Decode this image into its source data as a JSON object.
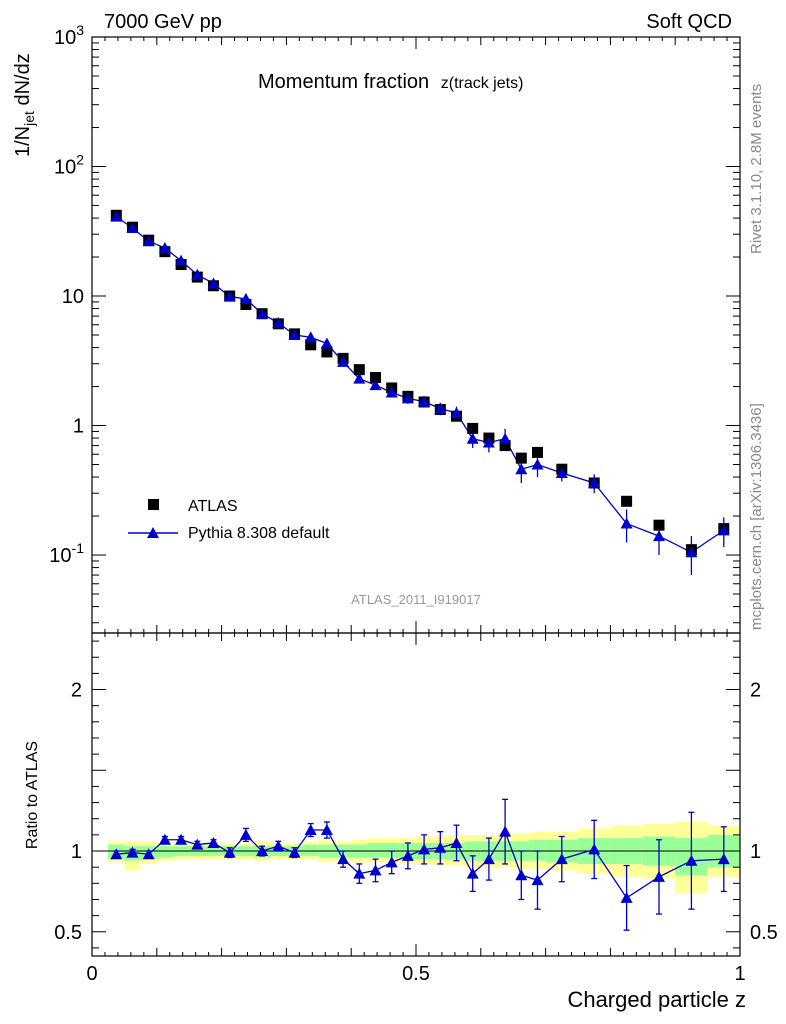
{
  "header": {
    "left": "7000 GeV pp",
    "right": "Soft QCD"
  },
  "side_labels": {
    "rivet": "Rivet 3.1.10,  2.8M events",
    "mcplots": "mcplots.cern.ch [arXiv:1306.3436]"
  },
  "chart_data": [
    {
      "type": "scatter",
      "title": "Momentum fraction",
      "title_sub": "z(track jets)",
      "analysis_tag": "ATLAS_2011_I919017",
      "ylabel": "1/N_jet dN/dz",
      "yscale": "log",
      "ylim": [
        0.025,
        1000
      ],
      "xlim": [
        0,
        1
      ],
      "y_tick_labels": [
        "10^-1",
        "1",
        "10",
        "10^2",
        "10^3"
      ],
      "legend": {
        "position": "lower-left",
        "entries": [
          "ATLAS",
          "Pythia 8.308 default"
        ]
      },
      "series": [
        {
          "name": "ATLAS",
          "marker": "square",
          "color": "#000000",
          "x": [
            0.0375,
            0.0625,
            0.0875,
            0.1125,
            0.1375,
            0.1625,
            0.1875,
            0.2125,
            0.2375,
            0.2625,
            0.2875,
            0.3125,
            0.3375,
            0.3625,
            0.3875,
            0.4125,
            0.4375,
            0.4625,
            0.4875,
            0.5125,
            0.5375,
            0.5625,
            0.5875,
            0.6125,
            0.6375,
            0.6625,
            0.6875,
            0.725,
            0.775,
            0.825,
            0.875,
            0.925,
            0.975
          ],
          "y": [
            42,
            34,
            27,
            22,
            17.5,
            14,
            12,
            10,
            8.6,
            7.3,
            6.1,
            5.1,
            4.2,
            3.7,
            3.3,
            2.7,
            2.35,
            1.95,
            1.68,
            1.52,
            1.33,
            1.18,
            0.95,
            0.8,
            0.7,
            0.56,
            0.62,
            0.46,
            0.36,
            0.26,
            0.17,
            0.11,
            0.16
          ]
        },
        {
          "name": "Pythia 8.308 default",
          "marker": "triangle",
          "color": "#0000cc",
          "x": [
            0.0375,
            0.0625,
            0.0875,
            0.1125,
            0.1375,
            0.1625,
            0.1875,
            0.2125,
            0.2375,
            0.2625,
            0.2875,
            0.3125,
            0.3375,
            0.3625,
            0.3875,
            0.4125,
            0.4375,
            0.4625,
            0.4875,
            0.5125,
            0.5375,
            0.5625,
            0.5875,
            0.6125,
            0.6375,
            0.6625,
            0.6875,
            0.725,
            0.775,
            0.825,
            0.875,
            0.925,
            0.975
          ],
          "y": [
            41,
            33.5,
            26.5,
            23.5,
            18.7,
            14.6,
            12.5,
            9.9,
            9.5,
            7.3,
            6.2,
            5.0,
            4.8,
            4.3,
            3.1,
            2.3,
            2.05,
            1.8,
            1.62,
            1.53,
            1.35,
            1.25,
            0.79,
            0.74,
            0.79,
            0.46,
            0.5,
            0.43,
            0.36,
            0.175,
            0.14,
            0.105,
            0.155
          ],
          "yerr": [
            1,
            0.8,
            0.6,
            0.6,
            0.5,
            0.4,
            0.3,
            0.3,
            0.3,
            0.2,
            0.2,
            0.2,
            0.2,
            0.2,
            0.15,
            0.15,
            0.15,
            0.15,
            0.15,
            0.15,
            0.15,
            0.15,
            0.12,
            0.12,
            0.15,
            0.1,
            0.1,
            0.06,
            0.06,
            0.05,
            0.04,
            0.035,
            0.04
          ]
        }
      ]
    },
    {
      "type": "scatter",
      "ylabel": "Ratio to ATLAS",
      "xlabel": "Charged particle z",
      "ylim": [
        0.35,
        2.35
      ],
      "xlim": [
        0,
        1
      ],
      "x_tick_labels": [
        "0",
        "0.5",
        "1"
      ],
      "y_tick_labels": [
        "0.5",
        "1",
        "2"
      ],
      "reference_line": 1,
      "bands": {
        "inner_color": "#99ff99",
        "outer_color": "#ffff99",
        "bins": [
          {
            "lo": 0.025,
            "hi": 0.05,
            "in": [
              0.95,
              1.04
            ],
            "out": [
              0.93,
              1.06
            ]
          },
          {
            "lo": 0.05,
            "hi": 0.075,
            "in": [
              0.94,
              1.03
            ],
            "out": [
              0.88,
              1.06
            ]
          },
          {
            "lo": 0.075,
            "hi": 0.1,
            "in": [
              0.95,
              1.03
            ],
            "out": [
              0.92,
              1.06
            ]
          },
          {
            "lo": 0.1,
            "hi": 0.125,
            "in": [
              0.96,
              1.03
            ],
            "out": [
              0.94,
              1.05
            ]
          },
          {
            "lo": 0.125,
            "hi": 0.15,
            "in": [
              0.97,
              1.03
            ],
            "out": [
              0.95,
              1.05
            ]
          },
          {
            "lo": 0.15,
            "hi": 0.175,
            "in": [
              0.97,
              1.03
            ],
            "out": [
              0.95,
              1.05
            ]
          },
          {
            "lo": 0.175,
            "hi": 0.2,
            "in": [
              0.97,
              1.03
            ],
            "out": [
              0.95,
              1.05
            ]
          },
          {
            "lo": 0.2,
            "hi": 0.225,
            "in": [
              0.97,
              1.03
            ],
            "out": [
              0.95,
              1.05
            ]
          },
          {
            "lo": 0.225,
            "hi": 0.25,
            "in": [
              0.97,
              1.03
            ],
            "out": [
              0.95,
              1.05
            ]
          },
          {
            "lo": 0.25,
            "hi": 0.275,
            "in": [
              0.96,
              1.03
            ],
            "out": [
              0.94,
              1.06
            ]
          },
          {
            "lo": 0.275,
            "hi": 0.3,
            "in": [
              0.97,
              1.03
            ],
            "out": [
              0.95,
              1.05
            ]
          },
          {
            "lo": 0.3,
            "hi": 0.325,
            "in": [
              0.97,
              1.03
            ],
            "out": [
              0.95,
              1.05
            ]
          },
          {
            "lo": 0.325,
            "hi": 0.35,
            "in": [
              0.97,
              1.04
            ],
            "out": [
              0.95,
              1.06
            ]
          },
          {
            "lo": 0.35,
            "hi": 0.375,
            "in": [
              0.96,
              1.04
            ],
            "out": [
              0.93,
              1.07
            ]
          },
          {
            "lo": 0.375,
            "hi": 0.4,
            "in": [
              0.96,
              1.04
            ],
            "out": [
              0.94,
              1.06
            ]
          },
          {
            "lo": 0.4,
            "hi": 0.425,
            "in": [
              0.96,
              1.04
            ],
            "out": [
              0.93,
              1.07
            ]
          },
          {
            "lo": 0.425,
            "hi": 0.45,
            "in": [
              0.96,
              1.05
            ],
            "out": [
              0.93,
              1.08
            ]
          },
          {
            "lo": 0.45,
            "hi": 0.475,
            "in": [
              0.96,
              1.05
            ],
            "out": [
              0.93,
              1.08
            ]
          },
          {
            "lo": 0.475,
            "hi": 0.5,
            "in": [
              0.95,
              1.05
            ],
            "out": [
              0.92,
              1.08
            ]
          },
          {
            "lo": 0.5,
            "hi": 0.525,
            "in": [
              0.95,
              1.05
            ],
            "out": [
              0.92,
              1.09
            ]
          },
          {
            "lo": 0.525,
            "hi": 0.55,
            "in": [
              0.95,
              1.05
            ],
            "out": [
              0.91,
              1.09
            ]
          },
          {
            "lo": 0.55,
            "hi": 0.575,
            "in": [
              0.95,
              1.05
            ],
            "out": [
              0.91,
              1.1
            ]
          },
          {
            "lo": 0.575,
            "hi": 0.6,
            "in": [
              0.94,
              1.06
            ],
            "out": [
              0.9,
              1.1
            ]
          },
          {
            "lo": 0.6,
            "hi": 0.625,
            "in": [
              0.94,
              1.06
            ],
            "out": [
              0.9,
              1.1
            ]
          },
          {
            "lo": 0.625,
            "hi": 0.65,
            "in": [
              0.94,
              1.06
            ],
            "out": [
              0.9,
              1.11
            ]
          },
          {
            "lo": 0.65,
            "hi": 0.675,
            "in": [
              0.94,
              1.06
            ],
            "out": [
              0.89,
              1.11
            ]
          },
          {
            "lo": 0.675,
            "hi": 0.7,
            "in": [
              0.94,
              1.07
            ],
            "out": [
              0.89,
              1.12
            ]
          },
          {
            "lo": 0.7,
            "hi": 0.75,
            "in": [
              0.93,
              1.07
            ],
            "out": [
              0.88,
              1.12
            ]
          },
          {
            "lo": 0.75,
            "hi": 0.8,
            "in": [
              0.92,
              1.08
            ],
            "out": [
              0.86,
              1.14
            ]
          },
          {
            "lo": 0.8,
            "hi": 0.85,
            "in": [
              0.92,
              1.08
            ],
            "out": [
              0.84,
              1.16
            ]
          },
          {
            "lo": 0.85,
            "hi": 0.9,
            "in": [
              0.91,
              1.09
            ],
            "out": [
              0.83,
              1.17
            ]
          },
          {
            "lo": 0.9,
            "hi": 0.95,
            "in": [
              0.85,
              1.08
            ],
            "out": [
              0.74,
              1.18
            ]
          },
          {
            "lo": 0.95,
            "hi": 1.0,
            "in": [
              0.9,
              1.1
            ],
            "out": [
              0.84,
              1.16
            ]
          }
        ]
      },
      "series": [
        {
          "name": "Pythia 8.308 default",
          "marker": "triangle",
          "color": "#0000cc",
          "x": [
            0.0375,
            0.0625,
            0.0875,
            0.1125,
            0.1375,
            0.1625,
            0.1875,
            0.2125,
            0.2375,
            0.2625,
            0.2875,
            0.3125,
            0.3375,
            0.3625,
            0.3875,
            0.4125,
            0.4375,
            0.4625,
            0.4875,
            0.5125,
            0.5375,
            0.5625,
            0.5875,
            0.6125,
            0.6375,
            0.6625,
            0.6875,
            0.725,
            0.775,
            0.825,
            0.875,
            0.925,
            0.975
          ],
          "y": [
            0.98,
            0.99,
            0.98,
            1.07,
            1.07,
            1.04,
            1.05,
            0.99,
            1.1,
            1.0,
            1.03,
            0.99,
            1.13,
            1.13,
            0.95,
            0.86,
            0.88,
            0.93,
            0.97,
            1.01,
            1.02,
            1.05,
            0.86,
            0.95,
            1.12,
            0.85,
            0.82,
            0.95,
            1.01,
            0.71,
            0.84,
            0.94,
            0.95
          ],
          "yerr": [
            0.02,
            0.02,
            0.02,
            0.02,
            0.02,
            0.02,
            0.02,
            0.03,
            0.04,
            0.03,
            0.03,
            0.03,
            0.04,
            0.05,
            0.05,
            0.06,
            0.07,
            0.07,
            0.08,
            0.09,
            0.1,
            0.11,
            0.11,
            0.13,
            0.2,
            0.15,
            0.18,
            0.14,
            0.18,
            0.2,
            0.23,
            0.3,
            0.2
          ]
        }
      ]
    }
  ]
}
